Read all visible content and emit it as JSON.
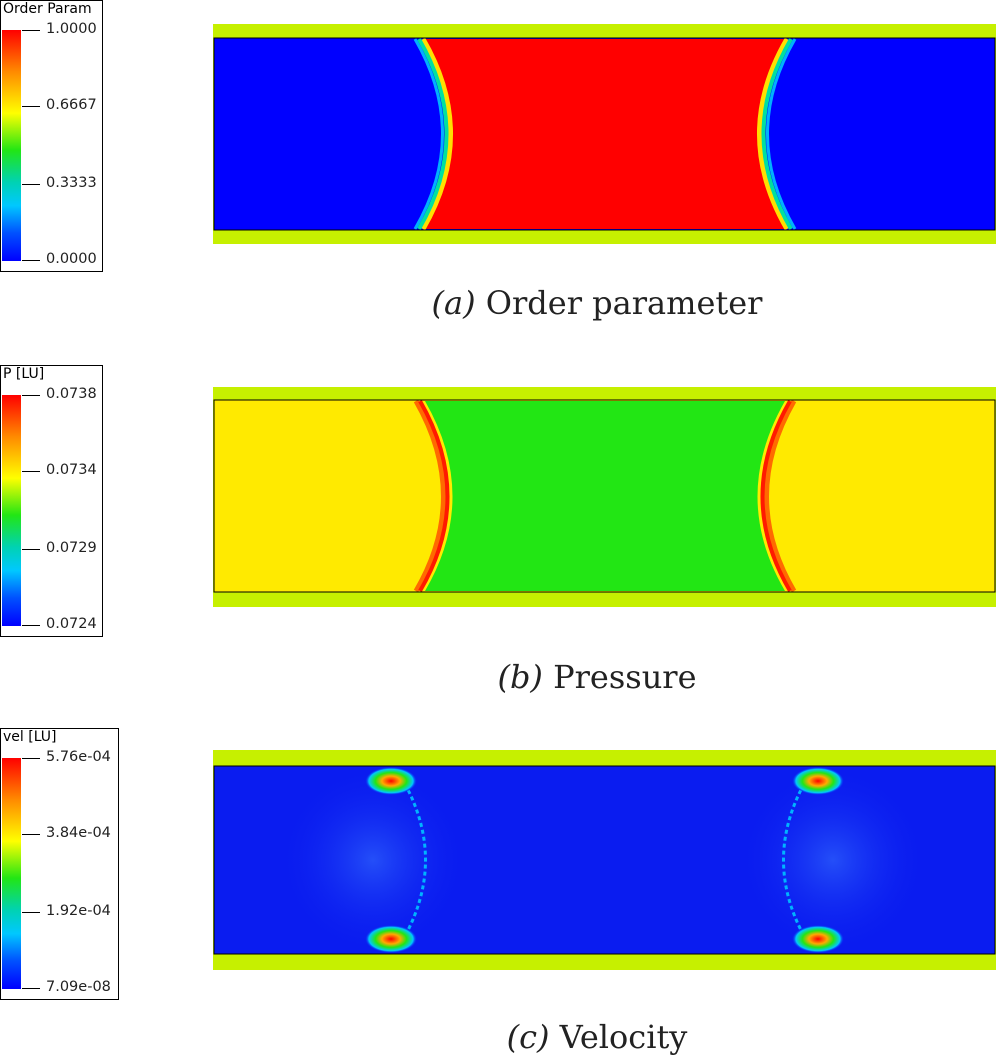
{
  "panels": [
    {
      "legend_title": "Order Param",
      "ticks": [
        "1.0000",
        "0.6667",
        "0.3333",
        "0.0000"
      ],
      "caption_symbol": "(a)",
      "caption_text": "Order parameter"
    },
    {
      "legend_title": "P [LU]",
      "ticks": [
        "0.0738",
        "0.0734",
        "0.0729",
        "0.0724"
      ],
      "caption_symbol": "(b)",
      "caption_text": "Pressure"
    },
    {
      "legend_title": "vel [LU]",
      "ticks": [
        "5.76e-04",
        "3.84e-04",
        "1.92e-04",
        "7.09e-08"
      ],
      "caption_symbol": "(c)",
      "caption_text": "Velocity"
    }
  ],
  "colors": {
    "wall": "#c6f000",
    "red": "#ff0000",
    "blue": "#0000ff",
    "yellow": "#ffea00",
    "green": "#22e614",
    "velocity_bg": "#0a1cf0"
  }
}
